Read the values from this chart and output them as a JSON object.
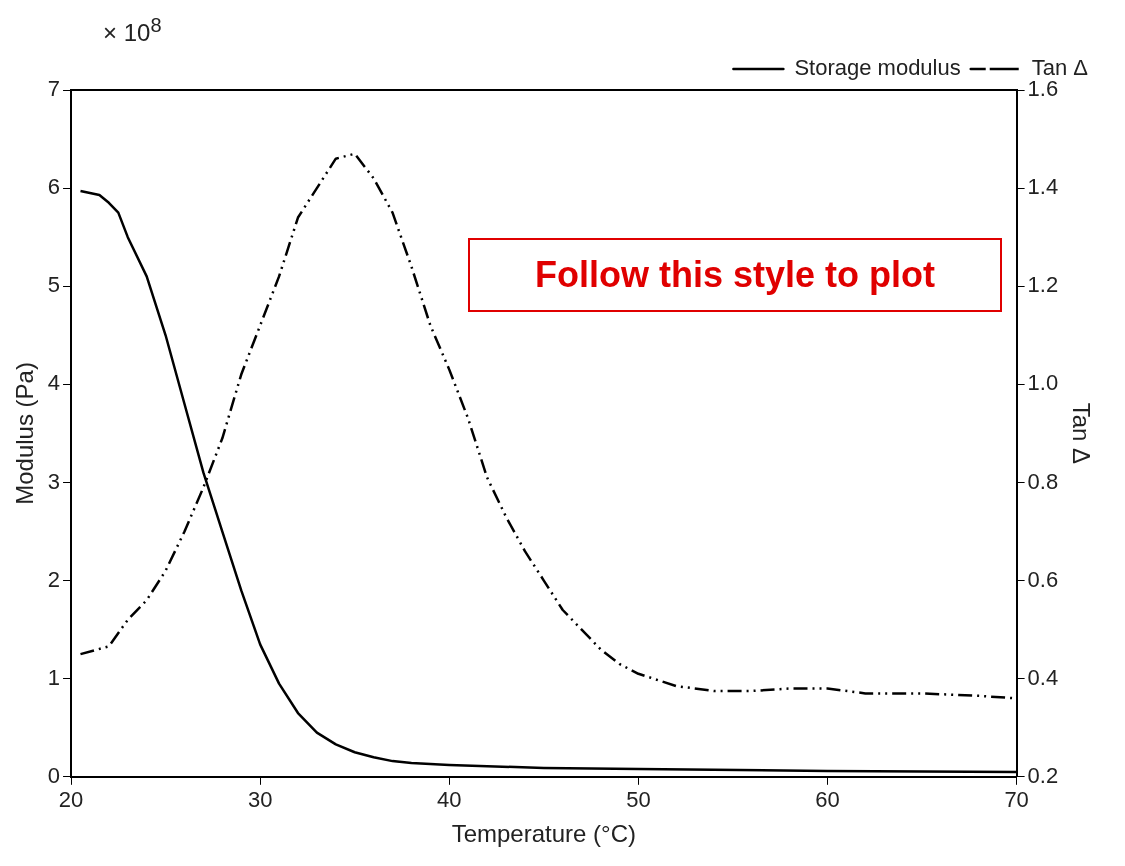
{
  "chart_data": {
    "type": "line",
    "xlabel": "Temperature (°C)",
    "ylabel": "Modulus (Pa)",
    "y2label": "Tan Δ",
    "annotations": [
      "× 10$^{8}$",
      "Follow this style to plot"
    ],
    "xlim": [
      20,
      70
    ],
    "xticks": [
      20,
      30,
      40,
      50,
      60,
      70
    ],
    "ylim": [
      0,
      7
    ],
    "yticks": [
      0,
      1,
      2,
      3,
      4,
      5,
      6,
      7
    ],
    "y2lim": [
      0.2,
      1.6
    ],
    "y2ticks": [
      0.2,
      0.4,
      0.6,
      0.8,
      {
        "value": 1,
        "label": "1.0"
      },
      1.2,
      1.4,
      1.6
    ],
    "grid": false,
    "legend": "top right",
    "marker": "none",
    "series": [
      {
        "name": "Storage modulus",
        "color": "#000000",
        "line_style": "solid",
        "x": [
          20.5,
          21.5,
          22,
          22.5,
          23,
          24,
          25,
          26,
          27,
          28,
          29,
          30,
          31,
          32,
          33,
          34,
          35,
          36,
          37,
          38,
          40,
          45,
          50,
          60,
          70
        ],
        "values": [
          5.97,
          5.93,
          5.85,
          5.75,
          5.5,
          5.1,
          4.5,
          3.8,
          3.1,
          2.5,
          1.9,
          1.35,
          0.95,
          0.65,
          0.45,
          0.33,
          0.25,
          0.2,
          0.16,
          0.14,
          0.12,
          0.09,
          0.08,
          0.06,
          0.05
        ]
      },
      {
        "name": "Tan Δ",
        "color": "#000000",
        "line_style": "dashed",
        "axis": "y2",
        "x": [
          20.5,
          22,
          23,
          24,
          25,
          26,
          27,
          28,
          29,
          30,
          31,
          32,
          33,
          34,
          35,
          36,
          37,
          38,
          39,
          40,
          41,
          42,
          43,
          44,
          45,
          46,
          47,
          48,
          49,
          50,
          52,
          54,
          56,
          58,
          60,
          62,
          65,
          68,
          70
        ],
        "values": [
          0.45,
          0.466,
          0.52,
          0.56,
          0.62,
          0.7,
          0.79,
          0.89,
          1.02,
          1.12,
          1.22,
          1.34,
          1.4,
          1.46,
          1.47,
          1.42,
          1.35,
          1.24,
          1.12,
          1.03,
          0.93,
          0.81,
          0.73,
          0.66,
          0.6,
          0.54,
          0.5,
          0.46,
          0.43,
          0.41,
          0.385,
          0.375,
          0.375,
          0.38,
          0.38,
          0.37,
          0.37,
          0.365,
          0.36
        ]
      }
    ]
  }
}
